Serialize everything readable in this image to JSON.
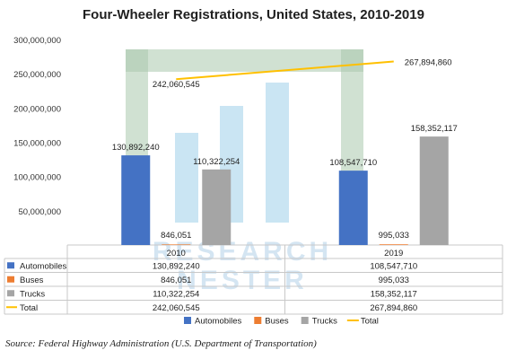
{
  "chart_data": {
    "type": "bar",
    "title": "Four-Wheeler Registrations, United States, 2010-2019",
    "categories": [
      "2010",
      "2019"
    ],
    "series": [
      {
        "name": "Automobiles",
        "type": "bar",
        "color": "#4472C4",
        "values": [
          130892240,
          108547710
        ],
        "labels": [
          "130,892,240",
          "108,547,710"
        ]
      },
      {
        "name": "Buses",
        "type": "bar",
        "color": "#ED7D31",
        "values": [
          846051,
          995033
        ],
        "labels": [
          "846,051",
          "995,033"
        ]
      },
      {
        "name": "Trucks",
        "type": "bar",
        "color": "#A5A5A5",
        "values": [
          110322254,
          158352117
        ],
        "labels": [
          "110,322,254",
          "158,352,117"
        ]
      },
      {
        "name": "Total",
        "type": "line",
        "color": "#FFC000",
        "values": [
          242060545,
          267894860
        ],
        "labels": [
          "242,060,545",
          "267,894,860"
        ]
      }
    ],
    "ylim": [
      0,
      300000000
    ],
    "yticks": [
      0,
      50000000,
      100000000,
      150000000,
      200000000,
      250000000,
      300000000
    ],
    "ytick_labels": [
      "",
      "50,000,000",
      "100,000,000",
      "150,000,000",
      "200,000,000",
      "250,000,000",
      "300,000,000"
    ],
    "legend_position": "bottom",
    "data_table": true,
    "grid": false
  },
  "source": "Source: Federal Highway Administration (U.S. Department of Transportation)",
  "watermark": "RESEARCH NESTER"
}
